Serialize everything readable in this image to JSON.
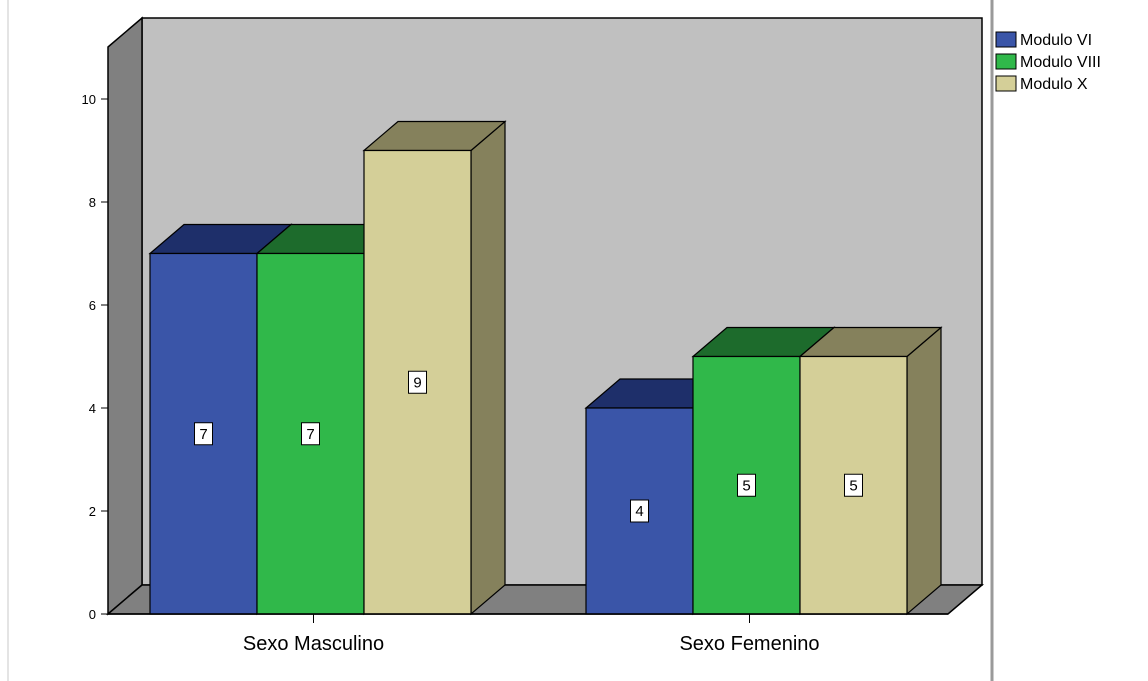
{
  "chart_data": {
    "type": "bar",
    "categories": [
      "Sexo Masculino",
      "Sexo Femenino"
    ],
    "series": [
      {
        "name": "Modulo VI",
        "values": [
          7,
          4
        ]
      },
      {
        "name": "Modulo VIII",
        "values": [
          7,
          5
        ]
      },
      {
        "name": "Modulo X",
        "values": [
          9,
          5
        ]
      }
    ],
    "ylim": [
      0,
      10
    ],
    "yticks": [
      0,
      2,
      4,
      6,
      8,
      10
    ],
    "grid": false,
    "legend_position": "top-right",
    "style": "3d-clustered",
    "colors": {
      "series_front": [
        "#3a55a8",
        "#30b84a",
        "#d4cf98"
      ],
      "series_top": [
        "#1e2f6a",
        "#1d6b2c",
        "#85815c"
      ],
      "series_side": [
        "#1e2f6a",
        "#1d6b2c",
        "#85815c"
      ],
      "back_wall": "#c0c0c0",
      "side_wall": "#808080",
      "floor": "#808080"
    }
  }
}
